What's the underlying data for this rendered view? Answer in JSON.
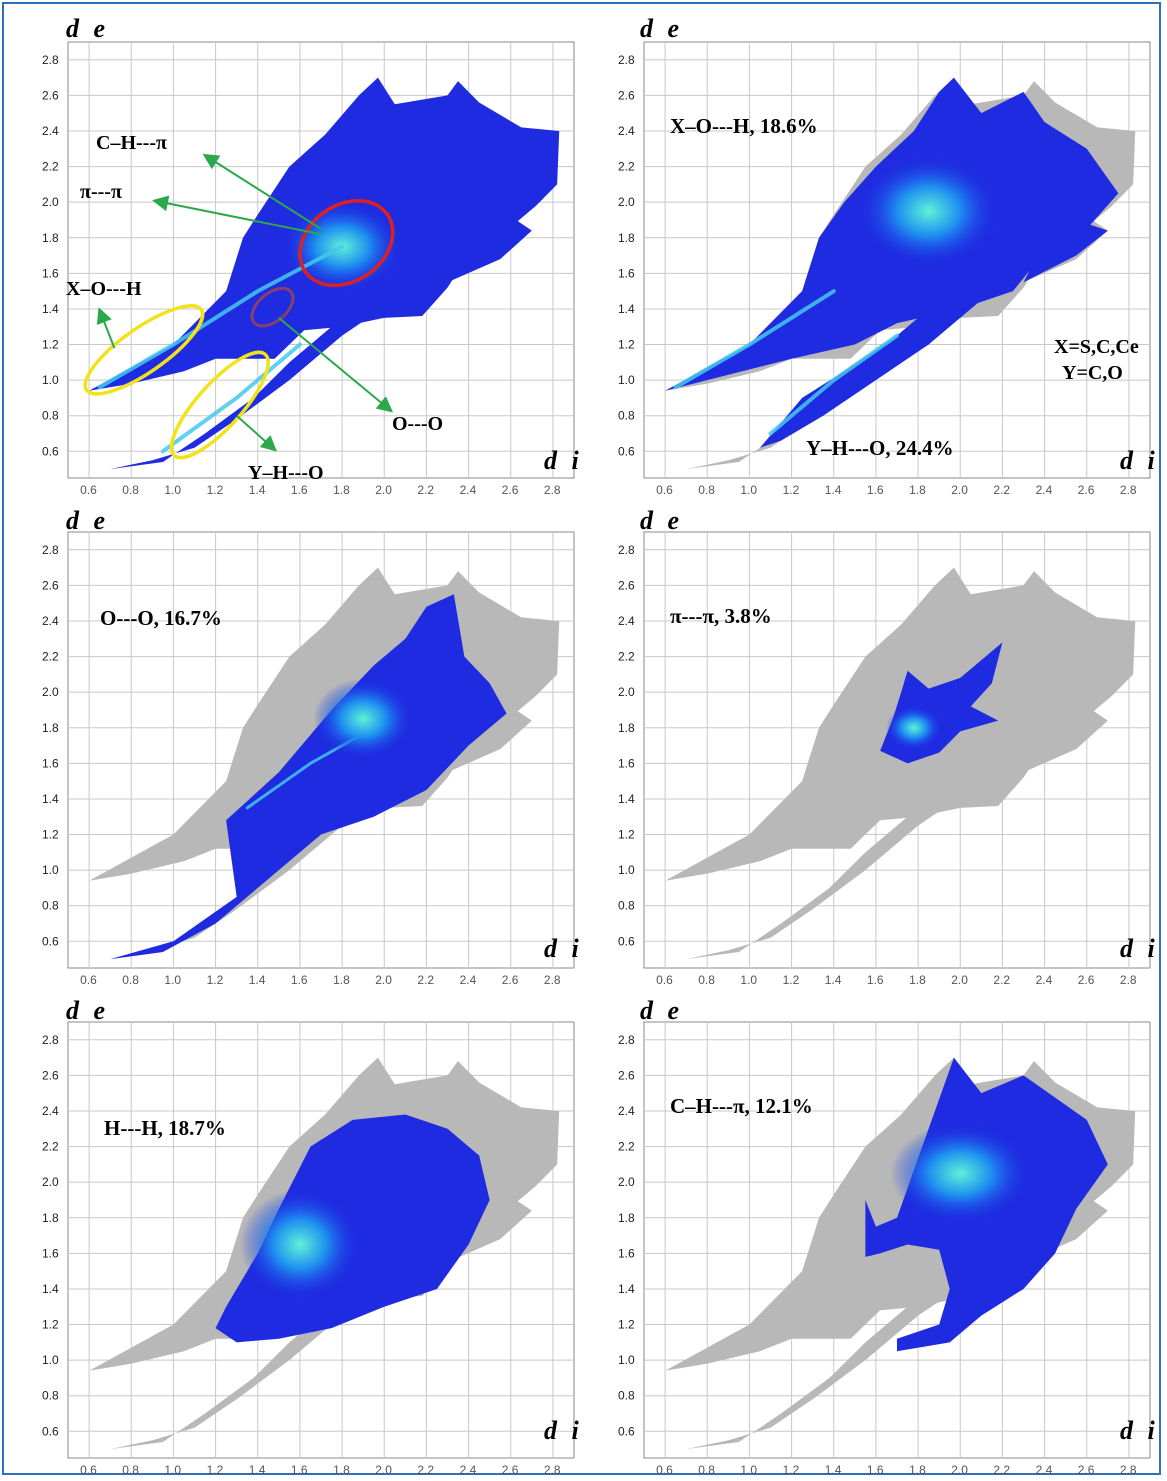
{
  "figure": {
    "axis_x_label": "d i",
    "axis_y_label": "d e",
    "colors": {
      "frame": "#2f6fc0",
      "background_points": "#b8b8b8",
      "highlight_low": "#1f2be0",
      "highlight_high": "#55f0e0",
      "grid": "#c8c8c8"
    }
  },
  "chart_data": [
    {
      "type": "scatter",
      "panel": "top-left",
      "xlabel": "d i",
      "ylabel": "d e",
      "xlim": [
        0.5,
        2.9
      ],
      "ylim": [
        0.45,
        2.9
      ],
      "xticks": [
        "0.6",
        "0.8",
        "1.0",
        "1.2",
        "1.4",
        "1.6",
        "1.8",
        "2.0",
        "2.2",
        "2.4",
        "2.6",
        "2.8"
      ],
      "yticks": [
        "0.6",
        "0.8",
        "1.0",
        "1.2",
        "1.4",
        "1.6",
        "1.8",
        "2.0",
        "2.2",
        "2.4",
        "2.6",
        "2.8"
      ],
      "grid": true,
      "fingerprint_label": "",
      "annotations": [
        {
          "text": "C–H---π",
          "points_to": [
            1.8,
            1.75
          ]
        },
        {
          "text": "π---π",
          "points_to": [
            1.8,
            1.75
          ]
        },
        {
          "text": "X–O---H",
          "points_to": [
            0.85,
            1.15
          ]
        },
        {
          "text": "Y–H---O",
          "points_to": [
            1.2,
            0.85
          ]
        },
        {
          "text": "O---O",
          "points_to": [
            1.45,
            1.4
          ]
        }
      ],
      "highlight": "all contacts"
    },
    {
      "type": "scatter",
      "panel": "top-right",
      "xlabel": "d i",
      "ylabel": "d e",
      "xlim": [
        0.5,
        2.9
      ],
      "ylim": [
        0.45,
        2.9
      ],
      "grid": true,
      "fingerprint_label": "X–O---H, 18.6%",
      "secondary_label": "Y–H---O, 24.4%",
      "legend_text": [
        "X=S,C,Ce",
        "Y=C,O"
      ],
      "highlight": "X–O---H and Y–H---O spikes"
    },
    {
      "type": "scatter",
      "panel": "middle-left",
      "xlabel": "d i",
      "ylabel": "d e",
      "xlim": [
        0.5,
        2.9
      ],
      "ylim": [
        0.45,
        2.9
      ],
      "grid": true,
      "fingerprint_label": "O---O, 16.7%",
      "highlight": "O---O"
    },
    {
      "type": "scatter",
      "panel": "middle-right",
      "xlabel": "d i",
      "ylabel": "d e",
      "xlim": [
        0.5,
        2.9
      ],
      "ylim": [
        0.45,
        2.9
      ],
      "grid": true,
      "fingerprint_label": "π---π, 3.8%",
      "highlight": "π---π"
    },
    {
      "type": "scatter",
      "panel": "bottom-left",
      "xlabel": "d i",
      "ylabel": "d e",
      "xlim": [
        0.5,
        2.9
      ],
      "ylim": [
        0.45,
        2.9
      ],
      "grid": true,
      "fingerprint_label": "H---H, 18.7%",
      "highlight": "H---H"
    },
    {
      "type": "scatter",
      "panel": "bottom-right",
      "xlabel": "d i",
      "ylabel": "d e",
      "xlim": [
        0.5,
        2.9
      ],
      "ylim": [
        0.45,
        2.9
      ],
      "grid": true,
      "fingerprint_label": "C–H---π, 12.1%",
      "highlight": "C–H---π"
    }
  ]
}
